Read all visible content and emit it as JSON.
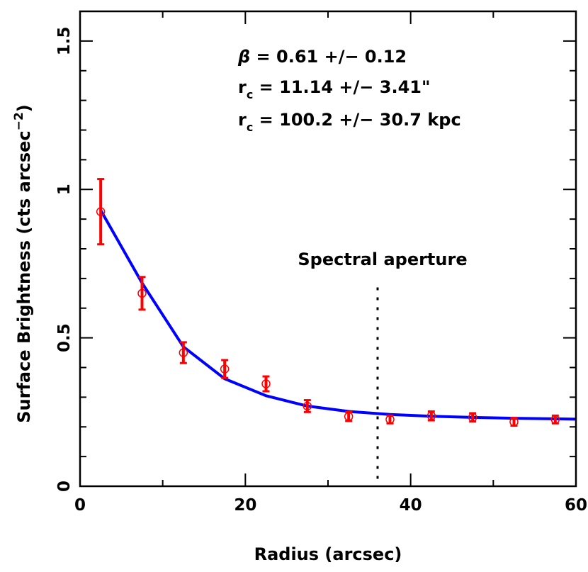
{
  "chart_data": {
    "type": "scatter",
    "xlabel": "Radius (arcsec)",
    "ylabel_main": "Surface Brightness (cts arcsec",
    "ylabel_exp": "−2",
    "ylabel_close": ")",
    "xlim": [
      0,
      60
    ],
    "ylim": [
      0,
      1.6
    ],
    "x_ticks": [
      {
        "value": 0,
        "label": "0"
      },
      {
        "value": 20,
        "label": "20"
      },
      {
        "value": 40,
        "label": "40"
      },
      {
        "value": 60,
        "label": "60"
      }
    ],
    "y_ticks": [
      {
        "value": 0,
        "label": "0"
      },
      {
        "value": 0.5,
        "label": "0.5"
      },
      {
        "value": 1,
        "label": "1"
      },
      {
        "value": 1.5,
        "label": "1.5"
      }
    ],
    "x_minor_step": 10,
    "y_minor_step": 0.1,
    "grid": false,
    "series": [
      {
        "kind": "points_with_errors",
        "color": "#ff0000",
        "points": [
          {
            "x": 2.5,
            "y": 0.925,
            "err": 0.11
          },
          {
            "x": 7.5,
            "y": 0.65,
            "err": 0.055
          },
          {
            "x": 12.5,
            "y": 0.45,
            "err": 0.035
          },
          {
            "x": 17.5,
            "y": 0.395,
            "err": 0.03
          },
          {
            "x": 22.5,
            "y": 0.345,
            "err": 0.025
          },
          {
            "x": 27.5,
            "y": 0.27,
            "err": 0.02
          },
          {
            "x": 32.5,
            "y": 0.235,
            "err": 0.015
          },
          {
            "x": 37.5,
            "y": 0.225,
            "err": 0.013
          },
          {
            "x": 42.5,
            "y": 0.237,
            "err": 0.015
          },
          {
            "x": 47.5,
            "y": 0.232,
            "err": 0.014
          },
          {
            "x": 52.5,
            "y": 0.217,
            "err": 0.013
          },
          {
            "x": 57.5,
            "y": 0.225,
            "err": 0.013
          }
        ]
      },
      {
        "kind": "model_line",
        "color": "#0000ff",
        "x": [
          2.5,
          7.5,
          12.5,
          17.5,
          22.5,
          27.5,
          32.5,
          37.5,
          42.5,
          47.5,
          52.5,
          57.5,
          60
        ],
        "y": [
          0.93,
          0.685,
          0.47,
          0.362,
          0.305,
          0.27,
          0.252,
          0.242,
          0.236,
          0.232,
          0.229,
          0.227,
          0.226
        ]
      }
    ],
    "aperture": {
      "x": 36,
      "label": "Spectral aperture",
      "y_top": 0.67
    },
    "annotations": [
      {
        "symbol": "β",
        "sub": "",
        "text": " = 0.61 +/− 0.12"
      },
      {
        "symbol": "r",
        "sub": "c",
        "text": " = 11.14 +/− 3.41\""
      },
      {
        "symbol": "r",
        "sub": "c",
        "text": " = 100.2 +/− 30.7 kpc"
      }
    ]
  }
}
